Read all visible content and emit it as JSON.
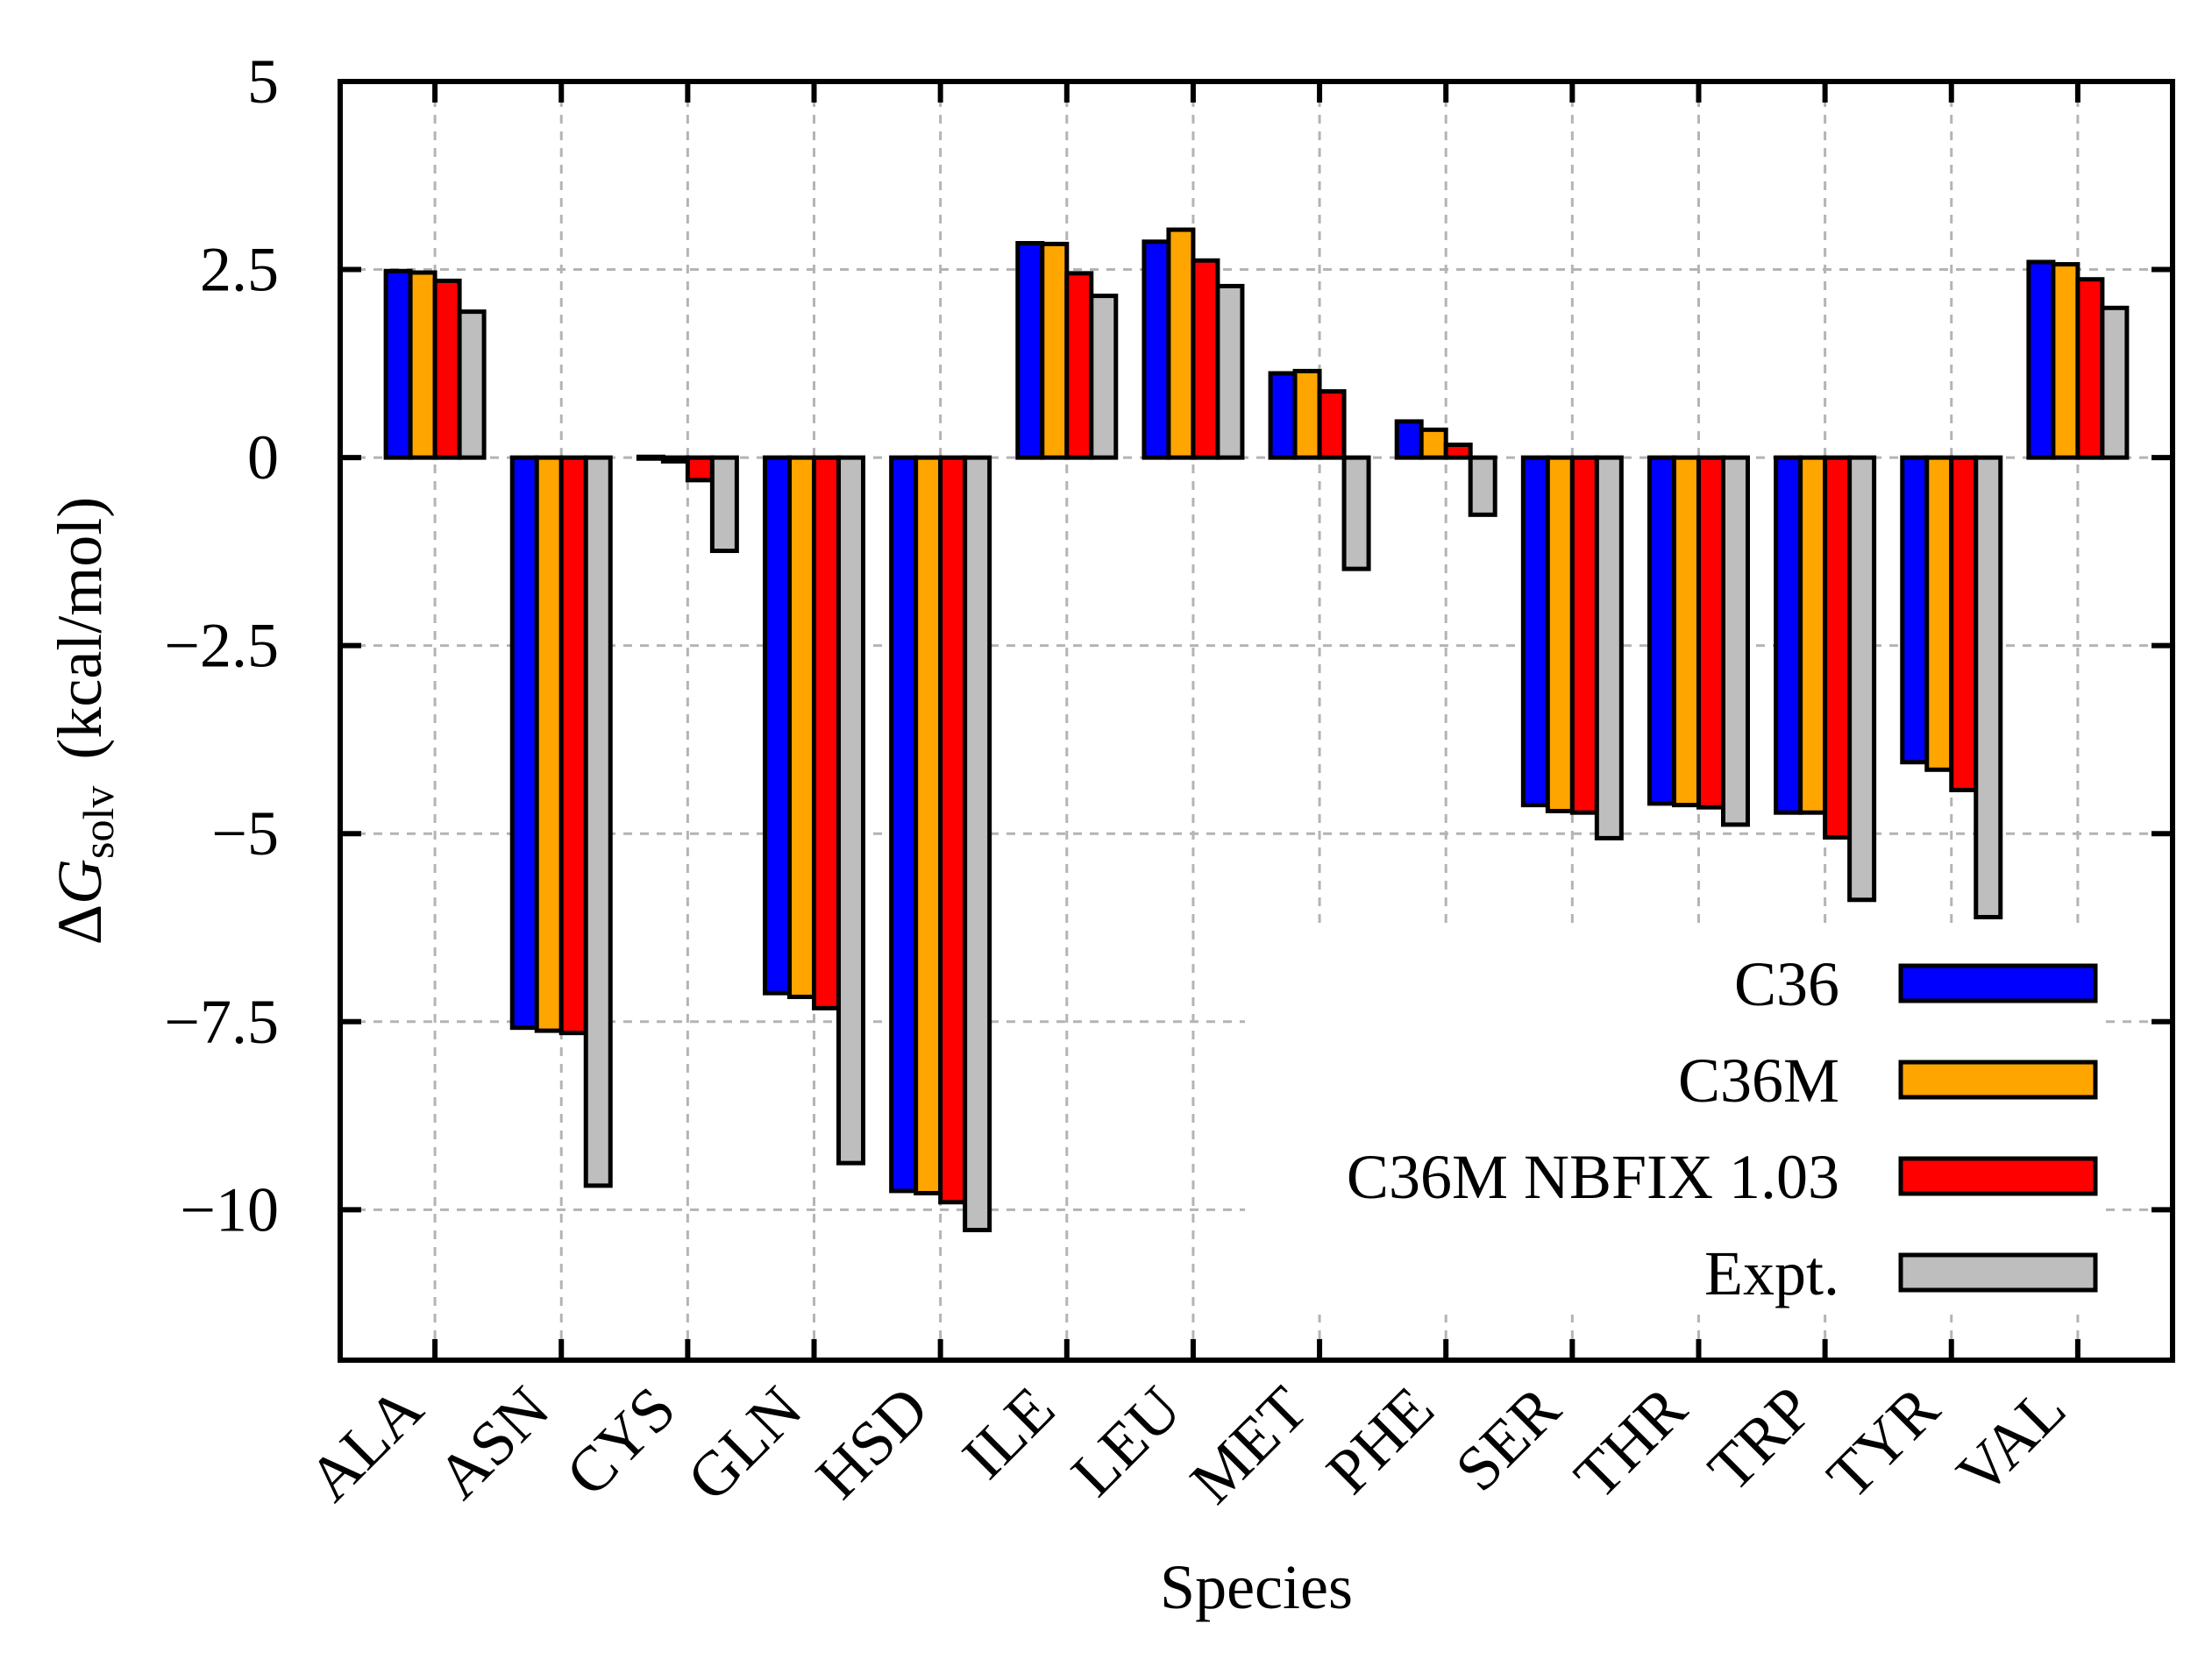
{
  "chart_data": {
    "type": "bar",
    "title": "",
    "xlabel": "Species",
    "ylabel": {
      "delta": "Δ",
      "symbol": "G",
      "subscript": "solv",
      "units": "(kcal/mol)"
    },
    "ylim": [
      -12,
      5
    ],
    "yticks": [
      5,
      2.5,
      0,
      -2.5,
      -5,
      -7.5,
      -10
    ],
    "ytick_labels": [
      "5",
      "2.5",
      "0",
      "−2.5",
      "−5",
      "−7.5",
      "−10"
    ],
    "grid": true,
    "legend_position": "bottom-right",
    "categories": [
      "ALA",
      "ASN",
      "CYS",
      "GLN",
      "HSD",
      "ILE",
      "LEU",
      "MET",
      "PHE",
      "SER",
      "THR",
      "TRP",
      "TYR",
      "VAL"
    ],
    "series": [
      {
        "name": "C36",
        "color": "#0000ff",
        "values": [
          2.48,
          -7.58,
          0.01,
          -7.12,
          -9.75,
          2.85,
          2.87,
          1.12,
          0.48,
          -4.62,
          -4.6,
          -4.72,
          -4.05,
          2.6
        ]
      },
      {
        "name": "C36M",
        "color": "#ffa500",
        "values": [
          2.46,
          -7.62,
          -0.05,
          -7.17,
          -9.78,
          2.84,
          3.03,
          1.15,
          0.37,
          -4.7,
          -4.62,
          -4.72,
          -4.15,
          2.57
        ]
      },
      {
        "name": "C36M NBFIX 1.03",
        "color": "#ff0000",
        "values": [
          2.35,
          -7.65,
          -0.3,
          -7.32,
          -9.9,
          2.45,
          2.62,
          0.88,
          0.17,
          -4.72,
          -4.65,
          -5.05,
          -4.42,
          2.37
        ]
      },
      {
        "name": "Expt.",
        "color": "#bebebe",
        "values": [
          1.94,
          -9.68,
          -1.24,
          -9.38,
          -10.27,
          2.15,
          2.28,
          -1.48,
          -0.76,
          -5.06,
          -4.88,
          -5.88,
          -6.11,
          1.99
        ]
      }
    ]
  }
}
